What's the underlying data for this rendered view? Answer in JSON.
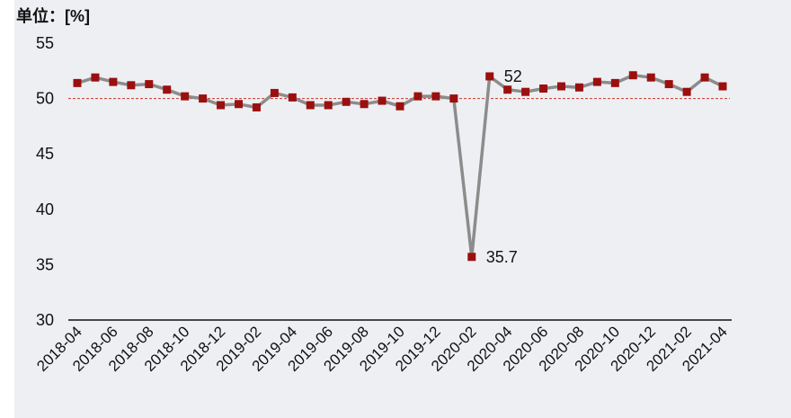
{
  "chart_data": {
    "type": "line",
    "unit_label": "单位：[%]",
    "title": "",
    "xlabel": "",
    "ylabel": "",
    "ylim": [
      30,
      55
    ],
    "y_ticks": [
      "30",
      "35",
      "40",
      "45",
      "50",
      "55"
    ],
    "x_tick_labels": [
      "2018-04",
      "2018-06",
      "2018-08",
      "2018-10",
      "2018-12",
      "2019-02",
      "2019-04",
      "2019-06",
      "2019-08",
      "2019-10",
      "2019-12",
      "2020-02",
      "2020-04",
      "2020-06",
      "2020-08",
      "2020-10",
      "2020-12",
      "2021-02",
      "2021-04"
    ],
    "x": [
      "2018-04",
      "2018-05",
      "2018-06",
      "2018-07",
      "2018-08",
      "2018-09",
      "2018-10",
      "2018-11",
      "2018-12",
      "2019-01",
      "2019-02",
      "2019-03",
      "2019-04",
      "2019-05",
      "2019-06",
      "2019-07",
      "2019-08",
      "2019-09",
      "2019-10",
      "2019-11",
      "2019-12",
      "2020-01",
      "2020-02",
      "2020-03",
      "2020-04",
      "2020-05",
      "2020-06",
      "2020-07",
      "2020-08",
      "2020-09",
      "2020-10",
      "2020-11",
      "2020-12",
      "2021-01",
      "2021-02",
      "2021-03",
      "2021-04"
    ],
    "series": [
      {
        "values": [
          51.4,
          51.9,
          51.5,
          51.2,
          51.3,
          50.8,
          50.2,
          50.0,
          49.4,
          49.5,
          49.2,
          50.5,
          50.1,
          49.4,
          49.4,
          49.7,
          49.5,
          49.8,
          49.3,
          50.2,
          50.2,
          50.0,
          35.7,
          52.0,
          50.8,
          50.6,
          50.9,
          51.1,
          51.0,
          51.5,
          51.4,
          52.1,
          51.9,
          51.3,
          50.6,
          51.9,
          51.1
        ],
        "line_color": "#8c8c8c",
        "marker_color": "#9b0f0f"
      }
    ],
    "reference_line": {
      "value": 50,
      "color": "#c0392b",
      "style": "dashed"
    },
    "annotations": [
      {
        "x": "2020-03",
        "value": 52,
        "text": "52"
      },
      {
        "x": "2020-02",
        "value": 35.7,
        "text": "35.7"
      }
    ],
    "grid": false,
    "legend": "none",
    "background": "#eeeff2"
  }
}
